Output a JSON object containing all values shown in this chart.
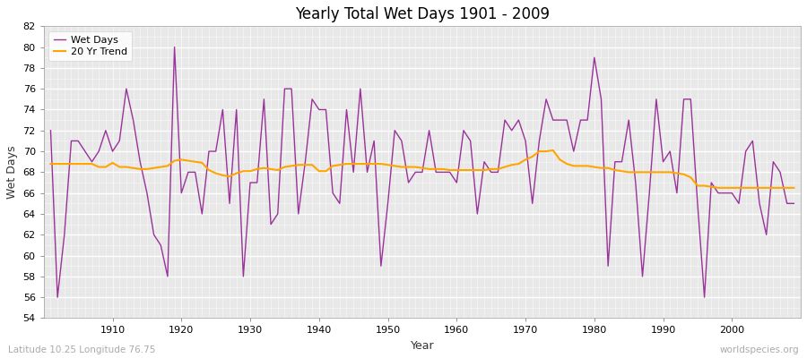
{
  "title": "Yearly Total Wet Days 1901 - 2009",
  "xlabel": "Year",
  "ylabel": "Wet Days",
  "subtitle": "Latitude 10.25 Longitude 76.75",
  "watermark": "worldspecies.org",
  "ylim": [
    54,
    82
  ],
  "xlim_min": 1900,
  "xlim_max": 2010,
  "fig_bg_color": "#ffffff",
  "plot_bg_color": "#e8e8e8",
  "wet_days_color": "#993399",
  "trend_color": "#ffa500",
  "legend_wet": "Wet Days",
  "legend_trend": "20 Yr Trend",
  "subtitle_color": "#aaaaaa",
  "watermark_color": "#aaaaaa",
  "years": [
    1901,
    1902,
    1903,
    1904,
    1905,
    1906,
    1907,
    1908,
    1909,
    1910,
    1911,
    1912,
    1913,
    1914,
    1915,
    1916,
    1917,
    1918,
    1919,
    1920,
    1921,
    1922,
    1923,
    1924,
    1925,
    1926,
    1927,
    1928,
    1929,
    1930,
    1931,
    1932,
    1933,
    1934,
    1935,
    1936,
    1937,
    1938,
    1939,
    1940,
    1941,
    1942,
    1943,
    1944,
    1945,
    1946,
    1947,
    1948,
    1949,
    1950,
    1951,
    1952,
    1953,
    1954,
    1955,
    1956,
    1957,
    1958,
    1959,
    1960,
    1961,
    1962,
    1963,
    1964,
    1965,
    1966,
    1967,
    1968,
    1969,
    1970,
    1971,
    1972,
    1973,
    1974,
    1975,
    1976,
    1977,
    1978,
    1979,
    1980,
    1981,
    1982,
    1983,
    1984,
    1985,
    1986,
    1987,
    1988,
    1989,
    1990,
    1991,
    1992,
    1993,
    1994,
    1995,
    1996,
    1997,
    1998,
    1999,
    2000,
    2001,
    2002,
    2003,
    2004,
    2005,
    2006,
    2007,
    2008,
    2009
  ],
  "wet_days": [
    72,
    56,
    62,
    71,
    71,
    70,
    69,
    70,
    72,
    70,
    71,
    76,
    73,
    69,
    66,
    62,
    61,
    58,
    80,
    66,
    68,
    68,
    64,
    70,
    70,
    74,
    65,
    74,
    58,
    67,
    67,
    75,
    63,
    64,
    76,
    76,
    64,
    69,
    75,
    74,
    74,
    66,
    65,
    74,
    68,
    76,
    68,
    71,
    59,
    65,
    72,
    71,
    67,
    68,
    68,
    72,
    68,
    68,
    68,
    67,
    72,
    71,
    64,
    69,
    68,
    68,
    73,
    72,
    73,
    71,
    65,
    71,
    75,
    73,
    73,
    73,
    70,
    73,
    73,
    79,
    75,
    59,
    69,
    69,
    73,
    67,
    58,
    66,
    75,
    69,
    70,
    66,
    75,
    75,
    65,
    56,
    67,
    66,
    66,
    66,
    65,
    70,
    71,
    65,
    62,
    69,
    68,
    65,
    65
  ],
  "trend": [
    68.8,
    68.8,
    68.8,
    68.8,
    68.8,
    68.8,
    68.8,
    68.5,
    68.5,
    68.9,
    68.5,
    68.5,
    68.4,
    68.3,
    68.3,
    68.4,
    68.5,
    68.6,
    69.1,
    69.2,
    69.1,
    69.0,
    68.9,
    68.2,
    67.9,
    67.7,
    67.6,
    67.9,
    68.1,
    68.1,
    68.3,
    68.4,
    68.3,
    68.2,
    68.5,
    68.6,
    68.7,
    68.7,
    68.7,
    68.1,
    68.1,
    68.6,
    68.7,
    68.8,
    68.8,
    68.8,
    68.8,
    68.8,
    68.8,
    68.7,
    68.6,
    68.5,
    68.5,
    68.5,
    68.4,
    68.3,
    68.3,
    68.3,
    68.2,
    68.2,
    68.2,
    68.2,
    68.2,
    68.2,
    68.3,
    68.3,
    68.5,
    68.7,
    68.8,
    69.2,
    69.5,
    70.0,
    70.0,
    70.1,
    69.2,
    68.8,
    68.6,
    68.6,
    68.6,
    68.5,
    68.4,
    68.4,
    68.2,
    68.1,
    68.0,
    68.0,
    68.0,
    68.0,
    68.0,
    68.0,
    68.0,
    67.9,
    67.8,
    67.5,
    66.7,
    66.7,
    66.6,
    66.5,
    66.5,
    66.5,
    66.5,
    66.5,
    66.5,
    66.5,
    66.5,
    66.5,
    66.5,
    66.5,
    66.5
  ]
}
